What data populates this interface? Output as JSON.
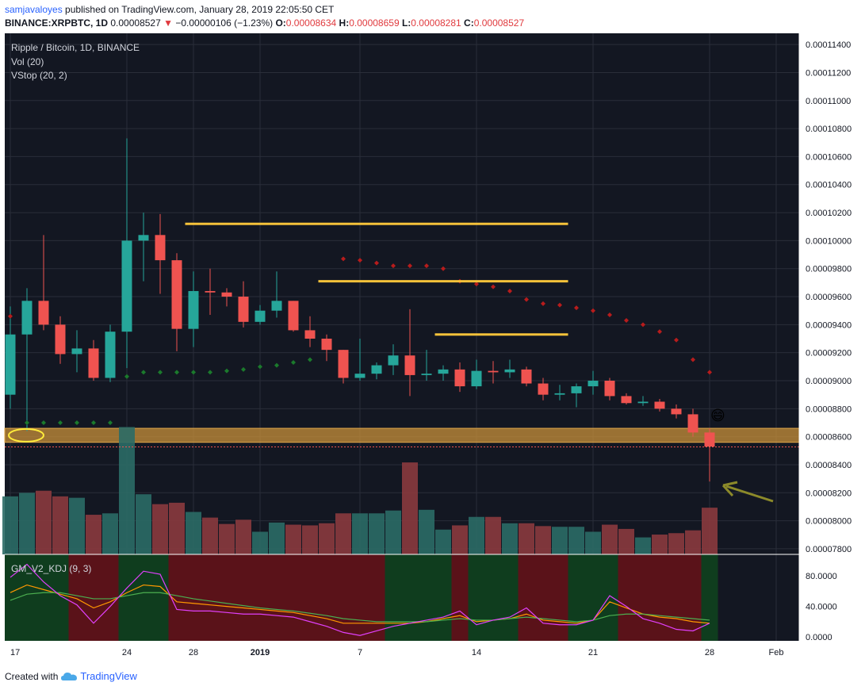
{
  "header": {
    "author": "samjavaloyes",
    "published": "published on TradingView.com, January 28, 2019 22:05:50 CET",
    "ticker": "BINANCE:XRPBTC, 1D",
    "last": "0.00008527",
    "change": "−0.00000106 (−1.23%)",
    "o_label": "O:",
    "o": "0.00008634",
    "h_label": "H:",
    "h": "0.00008659",
    "l_label": "L:",
    "l": "0.00008281",
    "c_label": "C:",
    "c": "0.00008527"
  },
  "legend": {
    "title": "Ripple / Bitcoin, 1D, BINANCE",
    "vol": "Vol (20)",
    "vstop": "VStop (20, 2)",
    "kdj": "GM_V2_KDJ (9, 3)"
  },
  "footer": {
    "created": "Created with",
    "brand": "TradingView"
  },
  "colors": {
    "up": "#26a69a",
    "down": "#ef5350",
    "bg": "#131722",
    "grid": "#2a2e39",
    "zone": "#c8903a",
    "lines": "#f5c23a"
  },
  "chart_data": {
    "type": "candlestick",
    "price_axis": {
      "ylim": [
        7.76e-05,
        0.0001148
      ],
      "ticks": [
        "0.00011400",
        "0.00011200",
        "0.00011000",
        "0.00010800",
        "0.00010600",
        "0.00010400",
        "0.00010200",
        "0.00010000",
        "0.00009800",
        "0.00009600",
        "0.00009400",
        "0.00009200",
        "0.00009000",
        "0.00008800",
        "0.00008600",
        "0.00008400",
        "0.00008200",
        "0.00008000",
        "0.00007800"
      ],
      "last_price_label": "0.00008527"
    },
    "x_axis": {
      "labels": [
        "17",
        "24",
        "28",
        "2019",
        "7",
        "14",
        "21",
        "28",
        "Feb"
      ]
    },
    "candles": [
      {
        "o": 8.9,
        "h": 9.53,
        "l": 8.8,
        "c": 9.33
      },
      {
        "o": 9.33,
        "h": 9.66,
        "l": 8.64,
        "c": 9.57
      },
      {
        "o": 9.57,
        "h": 10.04,
        "l": 9.36,
        "c": 9.4
      },
      {
        "o": 9.4,
        "h": 9.46,
        "l": 9.12,
        "c": 9.19
      },
      {
        "o": 9.19,
        "h": 9.36,
        "l": 9.06,
        "c": 9.23
      },
      {
        "o": 9.23,
        "h": 9.29,
        "l": 9.0,
        "c": 9.02
      },
      {
        "o": 9.02,
        "h": 9.4,
        "l": 8.99,
        "c": 9.35
      },
      {
        "o": 9.35,
        "h": 10.73,
        "l": 9.09,
        "c": 10.0
      },
      {
        "o": 10.0,
        "h": 10.2,
        "l": 9.71,
        "c": 10.04
      },
      {
        "o": 10.04,
        "h": 10.19,
        "l": 9.62,
        "c": 9.86
      },
      {
        "o": 9.86,
        "h": 9.91,
        "l": 9.21,
        "c": 9.37
      },
      {
        "o": 9.37,
        "h": 9.78,
        "l": 9.24,
        "c": 9.64
      },
      {
        "o": 9.64,
        "h": 9.8,
        "l": 9.47,
        "c": 9.63
      },
      {
        "o": 9.63,
        "h": 9.66,
        "l": 9.53,
        "c": 9.6
      },
      {
        "o": 9.6,
        "h": 9.71,
        "l": 9.38,
        "c": 9.42
      },
      {
        "o": 9.42,
        "h": 9.54,
        "l": 9.4,
        "c": 9.5
      },
      {
        "o": 9.5,
        "h": 9.78,
        "l": 9.45,
        "c": 9.57
      },
      {
        "o": 9.57,
        "h": 9.57,
        "l": 9.35,
        "c": 9.36
      },
      {
        "o": 9.36,
        "h": 9.46,
        "l": 9.24,
        "c": 9.3
      },
      {
        "o": 9.3,
        "h": 9.33,
        "l": 9.14,
        "c": 9.22
      },
      {
        "o": 9.22,
        "h": 9.22,
        "l": 8.98,
        "c": 9.02
      },
      {
        "o": 9.02,
        "h": 9.3,
        "l": 9.0,
        "c": 9.05
      },
      {
        "o": 9.05,
        "h": 9.13,
        "l": 9.01,
        "c": 9.11
      },
      {
        "o": 9.11,
        "h": 9.26,
        "l": 9.04,
        "c": 9.18
      },
      {
        "o": 9.18,
        "h": 9.51,
        "l": 8.89,
        "c": 9.04
      },
      {
        "o": 9.04,
        "h": 9.22,
        "l": 9.0,
        "c": 9.05
      },
      {
        "o": 9.05,
        "h": 9.11,
        "l": 9.0,
        "c": 9.08
      },
      {
        "o": 9.08,
        "h": 9.13,
        "l": 8.92,
        "c": 8.96
      },
      {
        "o": 8.96,
        "h": 9.15,
        "l": 8.94,
        "c": 9.07
      },
      {
        "o": 9.07,
        "h": 9.14,
        "l": 8.98,
        "c": 9.06
      },
      {
        "o": 9.06,
        "h": 9.15,
        "l": 9.02,
        "c": 9.08
      },
      {
        "o": 9.08,
        "h": 9.1,
        "l": 8.96,
        "c": 8.98
      },
      {
        "o": 8.98,
        "h": 9.02,
        "l": 8.86,
        "c": 8.9
      },
      {
        "o": 8.9,
        "h": 8.97,
        "l": 8.86,
        "c": 8.91
      },
      {
        "o": 8.91,
        "h": 8.98,
        "l": 8.81,
        "c": 8.96
      },
      {
        "o": 8.96,
        "h": 9.07,
        "l": 8.9,
        "c": 9.0
      },
      {
        "o": 9.0,
        "h": 9.02,
        "l": 8.86,
        "c": 8.89
      },
      {
        "o": 8.89,
        "h": 8.91,
        "l": 8.83,
        "c": 8.84
      },
      {
        "o": 8.84,
        "h": 8.89,
        "l": 8.82,
        "c": 8.85
      },
      {
        "o": 8.85,
        "h": 8.87,
        "l": 8.78,
        "c": 8.8
      },
      {
        "o": 8.8,
        "h": 8.83,
        "l": 8.73,
        "c": 8.76
      },
      {
        "o": 8.76,
        "h": 8.8,
        "l": 8.6,
        "c": 8.63
      },
      {
        "o": 8.63,
        "h": 8.66,
        "l": 8.28,
        "c": 8.53
      }
    ],
    "vstop_support": [
      {
        "i": 1,
        "v": 8.7
      },
      {
        "i": 2,
        "v": 8.7
      },
      {
        "i": 3,
        "v": 8.7
      },
      {
        "i": 4,
        "v": 8.7
      },
      {
        "i": 5,
        "v": 8.7
      },
      {
        "i": 6,
        "v": 8.7
      },
      {
        "i": 7,
        "v": 9.03
      },
      {
        "i": 8,
        "v": 9.06
      },
      {
        "i": 9,
        "v": 9.06
      },
      {
        "i": 10,
        "v": 9.06
      },
      {
        "i": 11,
        "v": 9.06
      },
      {
        "i": 12,
        "v": 9.06
      },
      {
        "i": 13,
        "v": 9.07
      },
      {
        "i": 14,
        "v": 9.08
      },
      {
        "i": 15,
        "v": 9.1
      },
      {
        "i": 16,
        "v": 9.11
      },
      {
        "i": 17,
        "v": 9.13
      },
      {
        "i": 18,
        "v": 9.15
      }
    ],
    "vstop_resistance": [
      {
        "i": 20,
        "v": 9.87
      },
      {
        "i": 21,
        "v": 9.86
      },
      {
        "i": 22,
        "v": 9.84
      },
      {
        "i": 23,
        "v": 9.82
      },
      {
        "i": 24,
        "v": 9.82
      },
      {
        "i": 25,
        "v": 9.82
      },
      {
        "i": 26,
        "v": 9.8
      },
      {
        "i": 27,
        "v": 9.71
      },
      {
        "i": 28,
        "v": 9.69
      },
      {
        "i": 29,
        "v": 9.67
      },
      {
        "i": 30,
        "v": 9.64
      },
      {
        "i": 31,
        "v": 9.58
      },
      {
        "i": 32,
        "v": 9.55
      },
      {
        "i": 33,
        "v": 9.54
      },
      {
        "i": 34,
        "v": 9.52
      },
      {
        "i": 35,
        "v": 9.5
      },
      {
        "i": 36,
        "v": 9.47
      },
      {
        "i": 37,
        "v": 9.43
      },
      {
        "i": 38,
        "v": 9.4
      },
      {
        "i": 39,
        "v": 9.35
      },
      {
        "i": 40,
        "v": 9.29
      },
      {
        "i": 41,
        "v": 9.15
      },
      {
        "i": 42,
        "v": 9.06
      }
    ],
    "first_support_dot": {
      "i": 0,
      "v": 9.46
    },
    "volume": [
      8.2,
      8.7,
      9.0,
      8.2,
      8.0,
      5.6,
      5.8,
      18.0,
      8.5,
      7.1,
      7.3,
      6.0,
      5.2,
      4.3,
      4.9,
      3.2,
      4.5,
      4.2,
      4.1,
      4.4,
      5.8,
      5.8,
      5.8,
      6.2,
      13.0,
      6.3,
      3.5,
      4.1,
      5.3,
      5.3,
      4.4,
      4.4,
      4.0,
      3.9,
      3.9,
      3.2,
      4.2,
      3.6,
      2.4,
      2.8,
      3.0,
      3.4,
      6.6
    ],
    "volume_max": 18.5,
    "kdj_axis": {
      "ylim": [
        -5,
        108
      ],
      "ticks": [
        "80.0000",
        "40.0000",
        "0.0000"
      ]
    },
    "kdj_k": [
      58,
      68,
      62,
      56,
      50,
      38,
      46,
      58,
      68,
      66,
      46,
      44,
      42,
      40,
      38,
      36,
      34,
      32,
      28,
      24,
      18,
      18,
      18,
      18,
      18,
      20,
      24,
      28,
      20,
      22,
      24,
      30,
      22,
      20,
      18,
      22,
      46,
      38,
      30,
      26,
      24,
      20,
      18
    ],
    "kdj_d": [
      48,
      56,
      58,
      58,
      54,
      50,
      50,
      54,
      58,
      58,
      54,
      50,
      47,
      44,
      41,
      38,
      36,
      34,
      31,
      28,
      24,
      22,
      20,
      20,
      20,
      20,
      22,
      24,
      22,
      22,
      24,
      26,
      24,
      22,
      20,
      22,
      28,
      30,
      30,
      28,
      26,
      24,
      22
    ],
    "kdj_j": [
      78,
      95,
      72,
      54,
      42,
      18,
      40,
      64,
      86,
      82,
      36,
      34,
      34,
      32,
      30,
      30,
      28,
      26,
      20,
      14,
      6,
      2,
      8,
      14,
      18,
      22,
      26,
      34,
      16,
      22,
      26,
      38,
      18,
      16,
      16,
      22,
      54,
      40,
      24,
      18,
      10,
      8,
      18
    ],
    "kdj_bg": [
      {
        "from": 0,
        "to": 4,
        "color": "green"
      },
      {
        "from": 4,
        "to": 7,
        "color": "red"
      },
      {
        "from": 7,
        "to": 10,
        "color": "green"
      },
      {
        "from": 10,
        "to": 23,
        "color": "red"
      },
      {
        "from": 23,
        "to": 27,
        "color": "green"
      },
      {
        "from": 27,
        "to": 28,
        "color": "red"
      },
      {
        "from": 28,
        "to": 31,
        "color": "green"
      },
      {
        "from": 31,
        "to": 34,
        "color": "red"
      },
      {
        "from": 34,
        "to": 37,
        "color": "green"
      },
      {
        "from": 37,
        "to": 42,
        "color": "red"
      },
      {
        "from": 42,
        "to": 43,
        "color": "green"
      }
    ],
    "drawings": {
      "support_zone": [
        8.56,
        8.66
      ],
      "horizontal_lines": [
        {
          "from": 10.5,
          "to": 33.5,
          "v": 10.12
        },
        {
          "from": 18.5,
          "to": 33.5,
          "v": 9.71
        },
        {
          "from": 25.5,
          "to": 33.5,
          "v": 9.33
        }
      ],
      "emoji": "😄"
    }
  }
}
